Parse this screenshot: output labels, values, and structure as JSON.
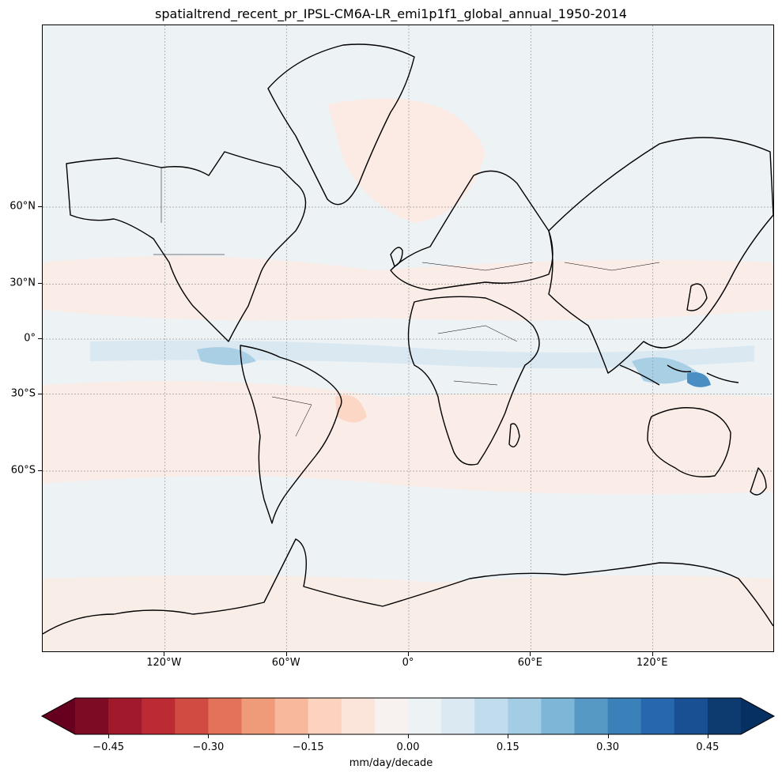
{
  "title": "spatialtrend_recent_pr_IPSL-CM6A-LR_emi1p1f1_global_annual_1950-2014",
  "map": {
    "projection": "Mercator",
    "lon_range": [
      -180,
      180
    ],
    "lat_range": [
      -85,
      85
    ],
    "gridlines": "dotted gray",
    "ocean_background": "#edf2f5",
    "features": [
      "coastlines",
      "country-borders"
    ]
  },
  "x_ticks": [
    {
      "lon": -120,
      "label": "120°W"
    },
    {
      "lon": -60,
      "label": "60°W"
    },
    {
      "lon": 0,
      "label": "0°"
    },
    {
      "lon": 60,
      "label": "60°E"
    },
    {
      "lon": 120,
      "label": "120°E"
    }
  ],
  "y_ticks": [
    {
      "lat": 60,
      "label": "60°N"
    },
    {
      "lat": 30,
      "label": "30°N"
    },
    {
      "lat": 0,
      "label": "0°"
    },
    {
      "lat": -30,
      "label": "30°S"
    },
    {
      "lat": -60,
      "label": "60°S"
    }
  ],
  "colorbar": {
    "label": "mm/day/decade",
    "cmap": "RdBu",
    "range": [
      -0.5,
      0.5
    ],
    "extend": "both",
    "colors": [
      "#7d0b24",
      "#a11a2b",
      "#bc2b34",
      "#d04b42",
      "#e2735a",
      "#ef9b7a",
      "#f7b89b",
      "#fcd3be",
      "#fbe5da",
      "#f7f1ef",
      "#edf2f5",
      "#dbe9f2",
      "#c1dcec",
      "#a3cde4",
      "#7db6d6",
      "#5699c4",
      "#3a80b9",
      "#2767ad",
      "#195093",
      "#0d3a6f"
    ],
    "under_color": "#67001f",
    "over_color": "#053061",
    "ticks": [
      {
        "value": -0.45,
        "label": "−0.45"
      },
      {
        "value": -0.3,
        "label": "−0.30"
      },
      {
        "value": -0.15,
        "label": "−0.15"
      },
      {
        "value": 0.0,
        "label": "0.00"
      },
      {
        "value": 0.15,
        "label": "0.15"
      },
      {
        "value": 0.3,
        "label": "0.30"
      },
      {
        "value": 0.45,
        "label": "0.45"
      }
    ]
  },
  "trend_colors": {
    "positive_weak": "#fbebe4",
    "positive_moderate": "#fcd7c6",
    "negative_weak": "#d6e7f1",
    "negative_moderate": "#a9cfe5",
    "negative_strong": "#4a8ec4"
  }
}
